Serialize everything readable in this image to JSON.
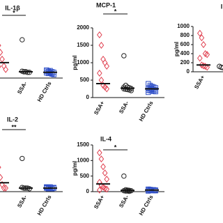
{
  "chart_data": [
    {
      "type": "scatter",
      "title": "IL-1β",
      "categories": [
        null,
        "SSA-",
        "HD Ctrls"
      ],
      "colors": [
        "#e04050",
        "#222222",
        "#3050c8"
      ],
      "markers": [
        "diamond",
        "circle",
        "square"
      ],
      "ylim": [
        0,
        100
      ],
      "values": [
        [
          57,
          45,
          33,
          21,
          15,
          20
        ],
        [
          67,
          11,
          11,
          10,
          10,
          12,
          11,
          11
        ],
        [
          14,
          12,
          10,
          8,
          6,
          9,
          11,
          13,
          7,
          10,
          12,
          8,
          9,
          11
        ]
      ],
      "medians": [
        27,
        11,
        10
      ],
      "significance": {
        "label": "*",
        "between": [
          0,
          1
        ]
      }
    },
    {
      "type": "scatter",
      "title": "MCP-1",
      "ylabel": "pg/ml",
      "categories": [
        "SSA+",
        "SSA-",
        "HD Ctrls"
      ],
      "colors": [
        "#e04050",
        "#222222",
        "#3050c8"
      ],
      "markers": [
        "diamond",
        "circle",
        "square"
      ],
      "ylim": [
        0,
        2000
      ],
      "yticks": [
        0,
        500,
        1000,
        1500,
        2000
      ],
      "values": [
        [
          1800,
          1500,
          1100,
          1000,
          900,
          700,
          500,
          350,
          300,
          250
        ],
        [
          1200,
          350,
          300,
          280,
          260,
          250,
          240,
          230,
          220,
          200,
          300
        ],
        [
          400,
          350,
          320,
          300,
          280,
          260,
          250,
          240,
          230,
          220,
          210,
          200,
          190,
          180,
          170,
          150,
          300,
          260
        ]
      ],
      "medians": [
        400,
        270,
        250
      ],
      "significance": {
        "label": "*",
        "between": [
          0,
          1
        ]
      }
    },
    {
      "type": "scatter",
      "title": "I",
      "ylabel": "pg/ml",
      "categories": [
        "SSA+",
        null
      ],
      "colors": [
        "#e04050",
        "#222222"
      ],
      "markers": [
        "diamond",
        "circle"
      ],
      "ylim": [
        0,
        1000
      ],
      "yticks": [
        0,
        200,
        400,
        600,
        800,
        1000
      ],
      "values": [
        [
          850,
          750,
          600,
          400,
          380,
          300,
          150,
          130,
          120,
          100
        ],
        [
          120,
          100,
          90
        ]
      ],
      "medians": [
        150,
        null
      ]
    },
    {
      "type": "scatter",
      "title": "IL-2",
      "categories": [
        null,
        "SSA-",
        "HD Ctrls"
      ],
      "colors": [
        "#e04050",
        "#222222",
        "#3050c8"
      ],
      "markers": [
        "diamond",
        "circle",
        "square"
      ],
      "ylim": [
        0,
        100
      ],
      "values": [
        [
          41,
          24,
          12,
          6,
          6
        ],
        [
          56,
          6,
          6,
          6,
          5,
          7,
          6,
          6
        ],
        [
          8,
          7,
          6,
          5,
          6,
          7,
          5,
          8,
          6,
          7,
          6,
          5
        ]
      ],
      "medians": [
        15,
        6,
        6
      ],
      "significance": {
        "label": "**",
        "between": [
          0,
          1
        ]
      }
    },
    {
      "type": "scatter",
      "title": "IL-4",
      "ylabel": "pg/ml",
      "categories": [
        "SSA+",
        "SSA-",
        "HD Ctrls"
      ],
      "colors": [
        "#e04050",
        "#222222",
        "#3050c8"
      ],
      "markers": [
        "diamond",
        "circle",
        "square"
      ],
      "ylim": [
        0,
        1500
      ],
      "yticks": [
        0,
        500,
        1000,
        1500
      ],
      "values": [
        [
          1250,
          1050,
          800,
          600,
          400,
          300,
          200,
          150,
          100,
          80,
          50
        ],
        [
          500,
          60,
          50,
          40,
          30,
          30,
          20,
          20,
          10
        ],
        [
          80,
          70,
          60,
          60,
          50,
          50,
          40,
          40,
          30,
          30,
          20,
          60
        ]
      ],
      "medians": [
        250,
        40,
        50
      ],
      "significance": {
        "label": "*",
        "between": [
          0,
          1
        ]
      }
    }
  ]
}
